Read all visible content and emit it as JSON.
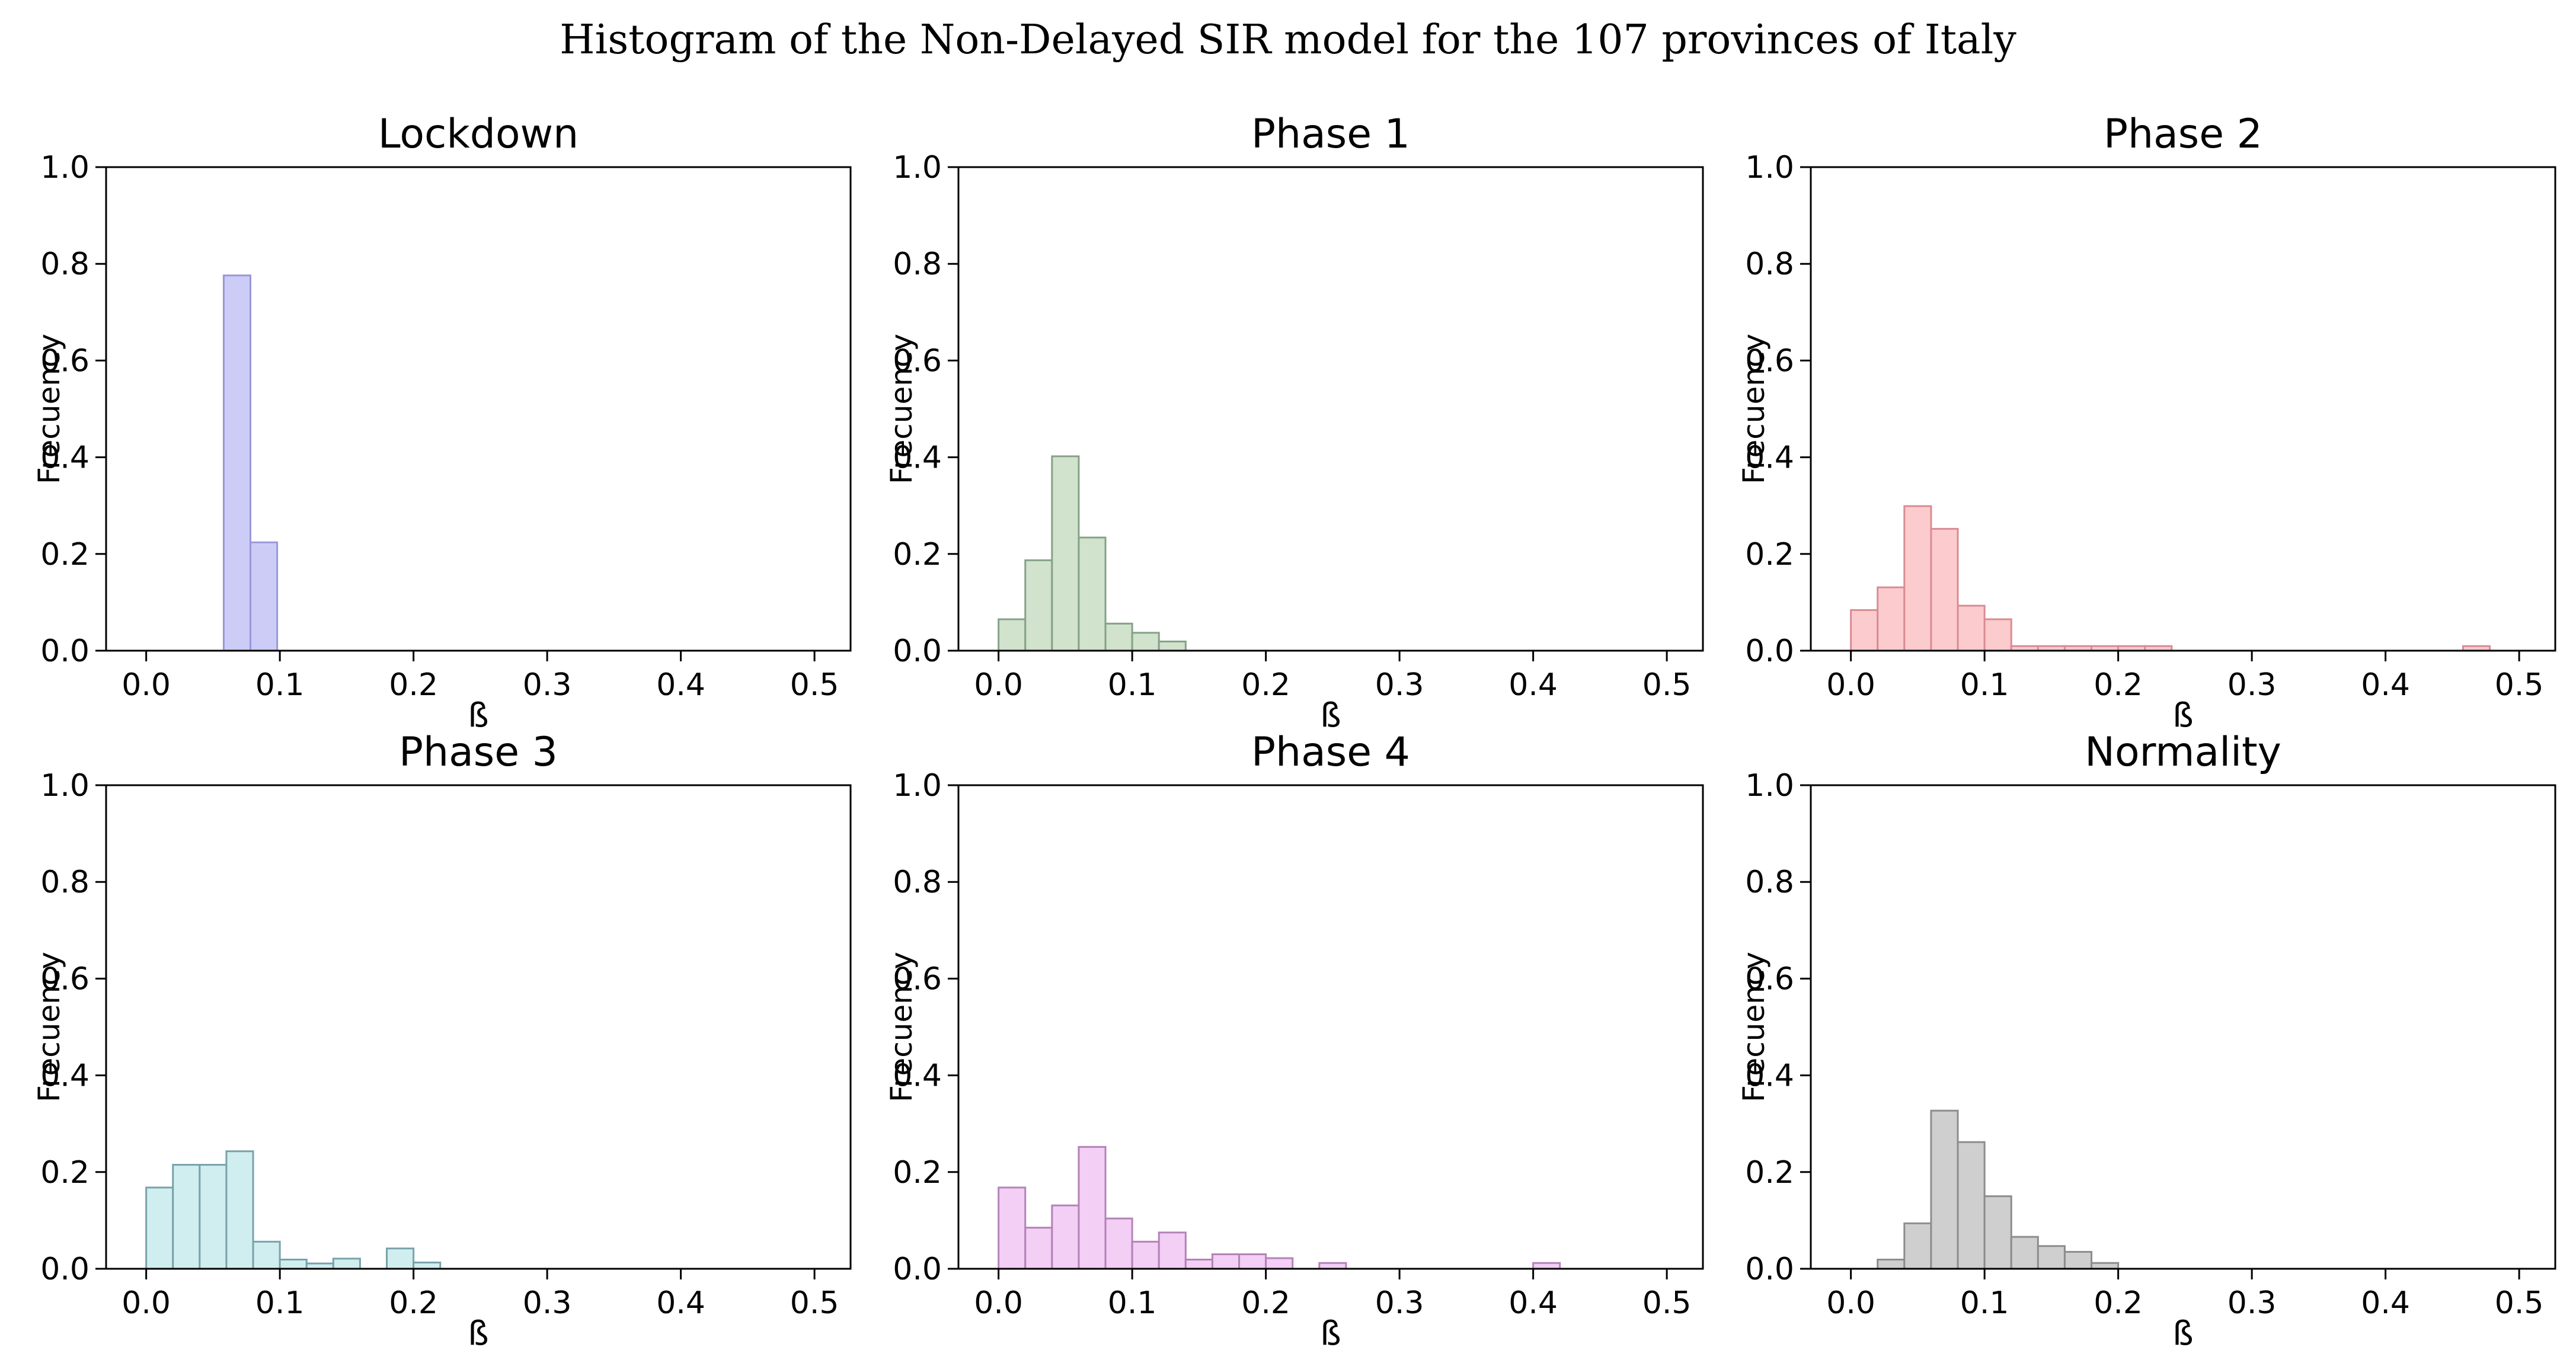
{
  "figure": {
    "title": "Histogram of the Non-Delayed SIR model for the 107 provinces of Italy"
  },
  "axes": {
    "ylabel": "Frecuency",
    "xlabel": "ß",
    "ytick_labels": [
      "0.0",
      "0.2",
      "0.4",
      "0.6",
      "0.8",
      "1.0"
    ],
    "ytick_values": [
      0.0,
      0.2,
      0.4,
      0.6,
      0.8,
      1.0
    ],
    "xtick_labels": [
      "0.0",
      "0.1",
      "0.2",
      "0.3",
      "0.4",
      "0.5"
    ],
    "xtick_values": [
      0.0,
      0.1,
      0.2,
      0.3,
      0.4,
      0.5
    ],
    "xlim": [
      -0.03,
      0.527
    ],
    "ylim": [
      0,
      1
    ],
    "grid": false,
    "legend": "none"
  },
  "chart_data": [
    {
      "type": "bar",
      "title": "Lockdown",
      "xlabel": "ß",
      "ylabel": "Frecuency",
      "xlim": [
        -0.03,
        0.527
      ],
      "ylim": [
        0,
        1
      ],
      "fill": "#ccccf7",
      "edge": "#9898d8",
      "bars": [
        [
          0.058,
          0.078,
          0.776
        ],
        [
          0.078,
          0.098,
          0.224
        ]
      ]
    },
    {
      "type": "bar",
      "title": "Phase 1",
      "xlabel": "ß",
      "ylabel": "Frecuency",
      "xlim": [
        -0.03,
        0.527
      ],
      "ylim": [
        0,
        1
      ],
      "fill": "#d1e2cd",
      "edge": "#85a287",
      "bars": [
        [
          0.0,
          0.02,
          0.065
        ],
        [
          0.02,
          0.04,
          0.187
        ],
        [
          0.04,
          0.06,
          0.402
        ],
        [
          0.06,
          0.08,
          0.234
        ],
        [
          0.08,
          0.1,
          0.056
        ],
        [
          0.1,
          0.12,
          0.037
        ],
        [
          0.12,
          0.14,
          0.019
        ]
      ]
    },
    {
      "type": "bar",
      "title": "Phase 2",
      "xlabel": "ß",
      "ylabel": "Frecuency",
      "xlim": [
        -0.03,
        0.527
      ],
      "ylim": [
        0,
        1
      ],
      "fill": "#fccbce",
      "edge": "#d88c92",
      "bars": [
        [
          0.0,
          0.02,
          0.084
        ],
        [
          0.02,
          0.04,
          0.131
        ],
        [
          0.04,
          0.06,
          0.299
        ],
        [
          0.06,
          0.08,
          0.252
        ],
        [
          0.08,
          0.1,
          0.093
        ],
        [
          0.1,
          0.12,
          0.065
        ],
        [
          0.12,
          0.14,
          0.0095
        ],
        [
          0.14,
          0.16,
          0.0095
        ],
        [
          0.16,
          0.18,
          0.0095
        ],
        [
          0.18,
          0.2,
          0.0095
        ],
        [
          0.2,
          0.22,
          0.0095
        ],
        [
          0.22,
          0.24,
          0.0095
        ],
        [
          0.458,
          0.478,
          0.0095
        ]
      ]
    },
    {
      "type": "bar",
      "title": "Phase 3",
      "xlabel": "ß",
      "ylabel": "Frecuency",
      "xlim": [
        -0.03,
        0.527
      ],
      "ylim": [
        0,
        1
      ],
      "fill": "#d0eef0",
      "edge": "#79a2aa",
      "bars": [
        [
          0.0,
          0.02,
          0.168
        ],
        [
          0.02,
          0.04,
          0.215
        ],
        [
          0.04,
          0.06,
          0.215
        ],
        [
          0.06,
          0.08,
          0.243
        ],
        [
          0.08,
          0.1,
          0.056
        ],
        [
          0.1,
          0.12,
          0.019
        ],
        [
          0.12,
          0.14,
          0.011
        ],
        [
          0.14,
          0.16,
          0.021
        ],
        [
          0.18,
          0.2,
          0.042
        ],
        [
          0.2,
          0.22,
          0.013
        ]
      ]
    },
    {
      "type": "bar",
      "title": "Phase 4",
      "xlabel": "ß",
      "ylabel": "Frecuency",
      "xlim": [
        -0.03,
        0.527
      ],
      "ylim": [
        0,
        1
      ],
      "fill": "#f3cef5",
      "edge": "#b383b6",
      "bars": [
        [
          0.0,
          0.02,
          0.168
        ],
        [
          0.02,
          0.04,
          0.085
        ],
        [
          0.04,
          0.06,
          0.131
        ],
        [
          0.06,
          0.08,
          0.252
        ],
        [
          0.08,
          0.1,
          0.104
        ],
        [
          0.1,
          0.12,
          0.056
        ],
        [
          0.12,
          0.14,
          0.075
        ],
        [
          0.14,
          0.16,
          0.019
        ],
        [
          0.16,
          0.18,
          0.03
        ],
        [
          0.18,
          0.2,
          0.03
        ],
        [
          0.2,
          0.22,
          0.022
        ],
        [
          0.24,
          0.26,
          0.012
        ],
        [
          0.4,
          0.42,
          0.012
        ]
      ]
    },
    {
      "type": "bar",
      "title": "Normality",
      "xlabel": "ß",
      "ylabel": "Frecuency",
      "xlim": [
        -0.03,
        0.527
      ],
      "ylim": [
        0,
        1
      ],
      "fill": "#cfcfcf",
      "edge": "#8d8d8d",
      "bars": [
        [
          0.02,
          0.04,
          0.019
        ],
        [
          0.04,
          0.06,
          0.094
        ],
        [
          0.06,
          0.08,
          0.327
        ],
        [
          0.08,
          0.1,
          0.262
        ],
        [
          0.1,
          0.12,
          0.15
        ],
        [
          0.12,
          0.14,
          0.066
        ],
        [
          0.14,
          0.16,
          0.047
        ],
        [
          0.16,
          0.18,
          0.035
        ],
        [
          0.18,
          0.2,
          0.012
        ]
      ]
    }
  ]
}
